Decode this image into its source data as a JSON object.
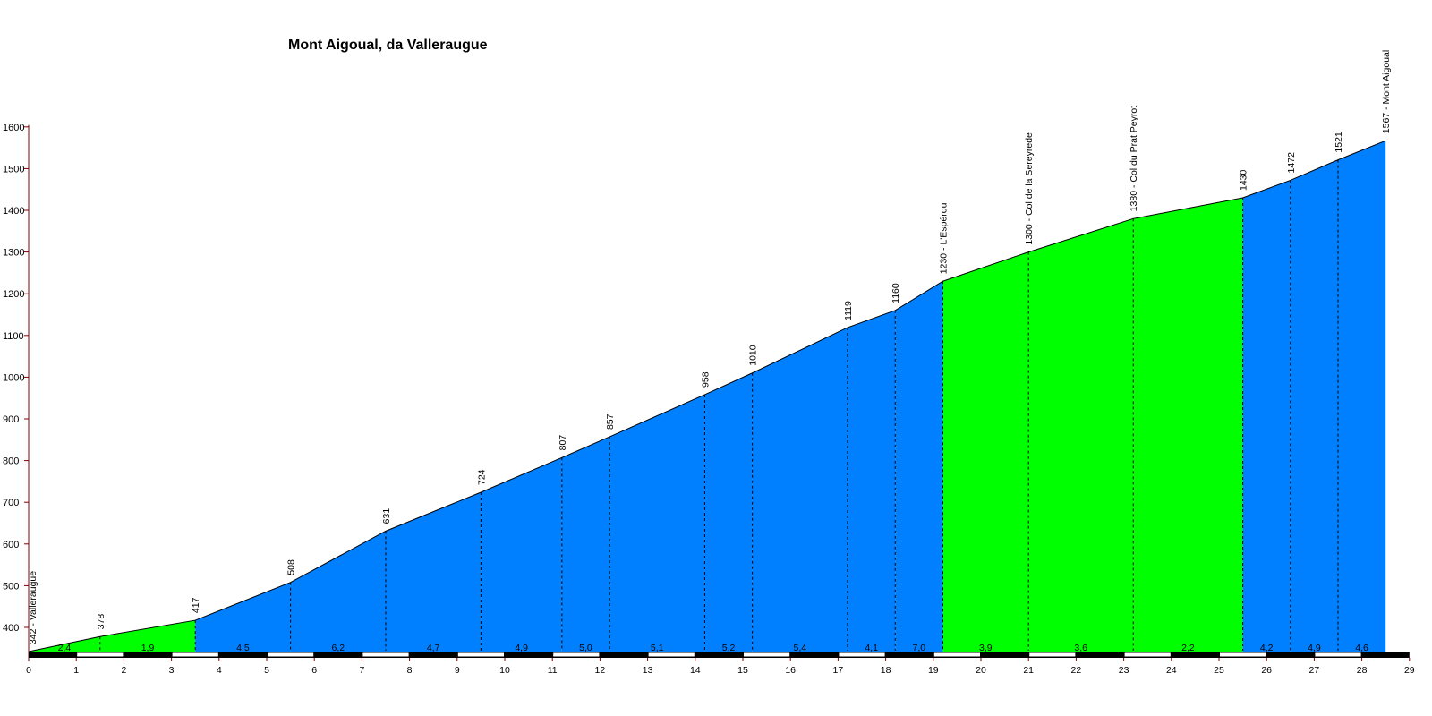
{
  "chart_data": {
    "type": "area",
    "title": "Mont Aigoual, da Valleraugue",
    "xlabel": "",
    "ylabel": "",
    "xlim": [
      0,
      29
    ],
    "ylim": [
      320,
      1600
    ],
    "yticks": [
      400,
      500,
      600,
      700,
      800,
      900,
      1000,
      1100,
      1200,
      1300,
      1400,
      1500,
      1600
    ],
    "xticks": [
      0,
      1,
      2,
      3,
      4,
      5,
      6,
      7,
      8,
      9,
      10,
      11,
      12,
      13,
      14,
      15,
      16,
      17,
      18,
      19,
      20,
      21,
      22,
      23,
      24,
      25,
      26,
      27,
      28,
      29
    ],
    "points": [
      {
        "km": 0,
        "alt": 342,
        "label": "342 - Valleraugue"
      },
      {
        "km": 1.5,
        "alt": 378,
        "label": "378"
      },
      {
        "km": 3.5,
        "alt": 417,
        "label": "417"
      },
      {
        "km": 5.5,
        "alt": 508,
        "label": "508"
      },
      {
        "km": 7.5,
        "alt": 631,
        "label": "631"
      },
      {
        "km": 9.5,
        "alt": 724,
        "label": "724"
      },
      {
        "km": 11.2,
        "alt": 807,
        "label": "807"
      },
      {
        "km": 12.2,
        "alt": 857,
        "label": "857"
      },
      {
        "km": 14.2,
        "alt": 958,
        "label": "958"
      },
      {
        "km": 15.2,
        "alt": 1010,
        "label": "1010"
      },
      {
        "km": 17.2,
        "alt": 1119,
        "label": "1119"
      },
      {
        "km": 18.2,
        "alt": 1160,
        "label": "1160"
      },
      {
        "km": 19.2,
        "alt": 1230,
        "label": "1230 - L'Espérou"
      },
      {
        "km": 21.0,
        "alt": 1300,
        "label": "1300 - Col de la Sereyrede"
      },
      {
        "km": 23.2,
        "alt": 1380,
        "label": "1380 - Col du Prat Peyrot"
      },
      {
        "km": 25.5,
        "alt": 1430,
        "label": "1430"
      },
      {
        "km": 26.5,
        "alt": 1472,
        "label": "1472"
      },
      {
        "km": 27.5,
        "alt": 1521,
        "label": "1521"
      },
      {
        "km": 28.5,
        "alt": 1567,
        "label": "1567 - Mont Aigoual"
      }
    ],
    "segments": [
      {
        "grade": "2,4",
        "color": "#00ff00"
      },
      {
        "grade": "1,9",
        "color": "#00ff00"
      },
      {
        "grade": "4,5",
        "color": "#0080ff"
      },
      {
        "grade": "6,2",
        "color": "#0080ff"
      },
      {
        "grade": "4,7",
        "color": "#0080ff"
      },
      {
        "grade": "4,9",
        "color": "#0080ff"
      },
      {
        "grade": "5,0",
        "color": "#0080ff"
      },
      {
        "grade": "5,1",
        "color": "#0080ff"
      },
      {
        "grade": "5,2",
        "color": "#0080ff"
      },
      {
        "grade": "5,4",
        "color": "#0080ff"
      },
      {
        "grade": "4,1",
        "color": "#0080ff"
      },
      {
        "grade": "7,0",
        "color": "#0080ff"
      },
      {
        "grade": "3,9",
        "color": "#00ff00"
      },
      {
        "grade": "3,6",
        "color": "#00ff00"
      },
      {
        "grade": "2,2",
        "color": "#00ff00"
      },
      {
        "grade": "4,2",
        "color": "#0080ff"
      },
      {
        "grade": "4,9",
        "color": "#0080ff"
      },
      {
        "grade": "4,6",
        "color": "#0080ff"
      }
    ],
    "colors": {
      "axis": "#800000",
      "outline": "#000000"
    }
  }
}
